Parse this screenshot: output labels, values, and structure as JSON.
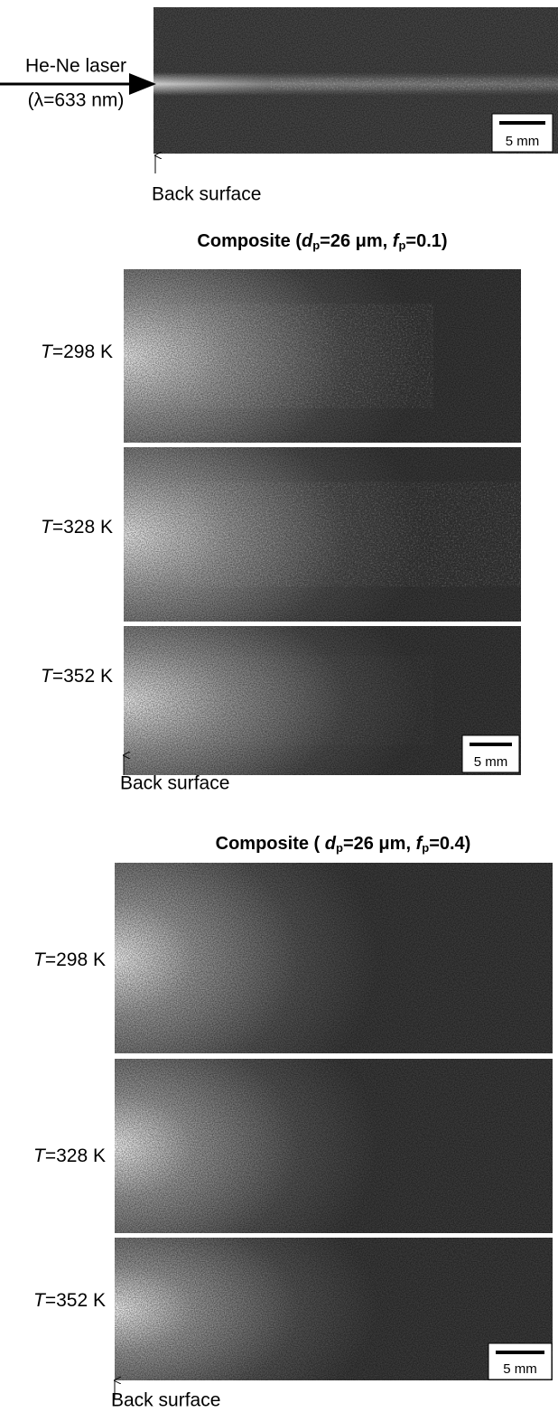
{
  "panel_a": {
    "laser_label": "He-Ne laser",
    "wavelength_label": "(λ=633 nm)",
    "scale_bar": "5 mm",
    "back_surface": "Back surface"
  },
  "panel_b": {
    "title": {
      "prefix": "Composite (",
      "d": "d",
      "d_sub": "p",
      "middle": "=26 μm, ",
      "f": "f",
      "f_sub": "p",
      "suffix": "=0.1)"
    },
    "rows": [
      {
        "var": "T",
        "rest": "=298 K"
      },
      {
        "var": "T",
        "rest": "=328 K"
      },
      {
        "var": "T",
        "rest": "=352 K"
      }
    ],
    "scale_bar": "5 mm",
    "back_surface": "Back surface"
  },
  "panel_c": {
    "title": {
      "prefix": "Composite ( ",
      "d": "d",
      "d_sub": "p",
      "middle": "=26 μm, ",
      "f": "f",
      "f_sub": "p",
      "suffix": "=0.4)"
    },
    "rows": [
      {
        "var": "T",
        "rest": "=298 K"
      },
      {
        "var": "T",
        "rest": "=328 K"
      },
      {
        "var": "T",
        "rest": "=352 K"
      }
    ],
    "scale_bar": "5 mm",
    "back_surface": "Back surface"
  }
}
